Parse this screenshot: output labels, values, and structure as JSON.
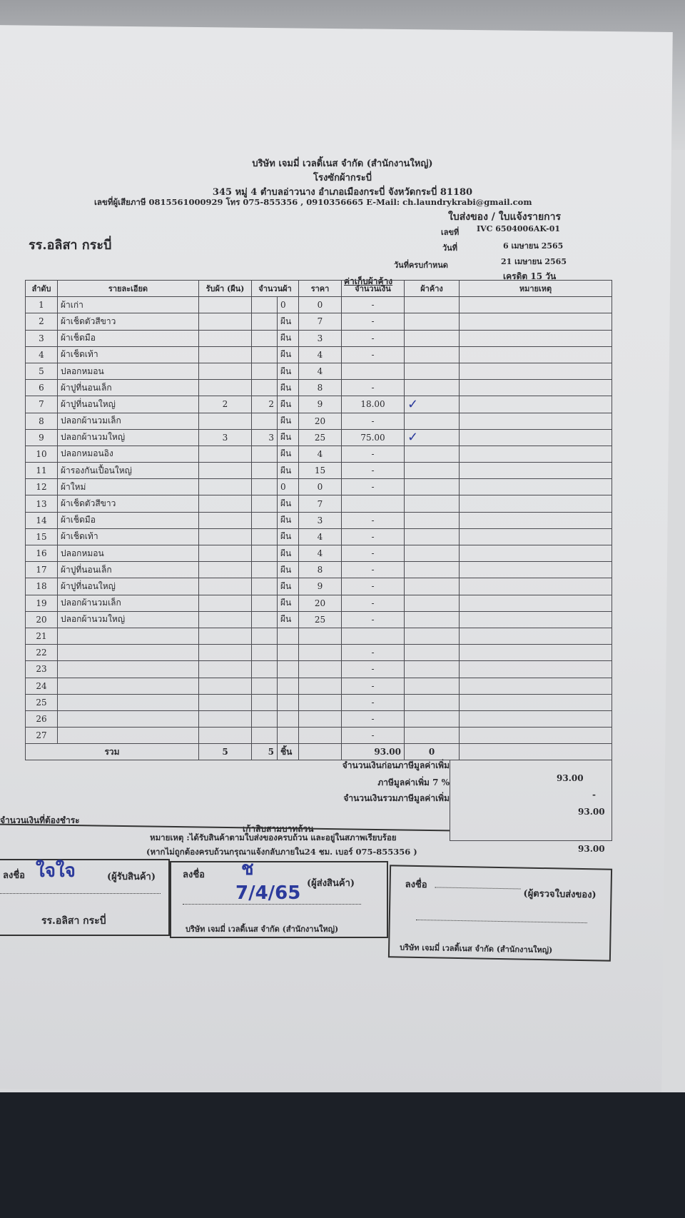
{
  "company": {
    "name": "บริษัท เจมมี่ เวลดิ้เนส จำกัด (สำนักงานใหญ่)",
    "branch": "โรงซักผ้ากระบี่",
    "address": "345 หมู่ 4 ตำบลอ่าวนาง อำเภอเมืองกระบี่ จังหวัดกระบี่ 81180",
    "contact": "เลขที่ผู้เสียภาษี 0815561000929 โทร 075-855356 , 0910356665 E-Mail: ch.laundrykrabi@gmail.com"
  },
  "doc": {
    "type": "ใบส่งของ / ใบแจ้งรายการ",
    "no_label": "เลขที่",
    "no": "IVC 6504006AK-01",
    "date_label": "วันที่",
    "date": "6 เมษายน 2565",
    "due_label": "วันที่ครบกำหนด",
    "due": "21 เมษายน 2565",
    "credit": "เครดิต 15 วัน",
    "customer": "รร.อลิสา กระบี่",
    "section": "ค่าเก็บผ้าค้าง"
  },
  "table": {
    "headers": [
      "ลำดับ",
      "รายละเอียด",
      "รับผ้า (ผืน)",
      "จำนวนผ้า",
      "ราคา",
      "จำนวนเงิน",
      "ผ้าค้าง",
      "หมายเหตุ"
    ],
    "rows": [
      {
        "no": "1",
        "item": "ผ้าเก่า",
        "recv": "",
        "qty": "",
        "unit": "0",
        "price": "0",
        "amount": "-",
        "mark": ""
      },
      {
        "no": "2",
        "item": "ผ้าเช็ดตัวสีขาว",
        "recv": "",
        "qty": "",
        "unit": "ผืน",
        "price": "7",
        "amount": "-",
        "mark": ""
      },
      {
        "no": "3",
        "item": "ผ้าเช็ดมือ",
        "recv": "",
        "qty": "",
        "unit": "ผืน",
        "price": "3",
        "amount": "-",
        "mark": ""
      },
      {
        "no": "4",
        "item": "ผ้าเช็ดเท้า",
        "recv": "",
        "qty": "",
        "unit": "ผืน",
        "price": "4",
        "amount": "-",
        "mark": ""
      },
      {
        "no": "5",
        "item": "ปลอกหมอน",
        "recv": "",
        "qty": "",
        "unit": "ผืน",
        "price": "4",
        "amount": "",
        "mark": ""
      },
      {
        "no": "6",
        "item": "ผ้าปูที่นอนเล็ก",
        "recv": "",
        "qty": "",
        "unit": "ผืน",
        "price": "8",
        "amount": "-",
        "mark": ""
      },
      {
        "no": "7",
        "item": "ผ้าปูที่นอนใหญ่",
        "recv": "2",
        "qty": "2",
        "unit": "ผืน",
        "price": "9",
        "amount": "18.00",
        "mark": "✓"
      },
      {
        "no": "8",
        "item": "ปลอกผ้านวมเล็ก",
        "recv": "",
        "qty": "",
        "unit": "ผืน",
        "price": "20",
        "amount": "-",
        "mark": ""
      },
      {
        "no": "9",
        "item": "ปลอกผ้านวมใหญ่",
        "recv": "3",
        "qty": "3",
        "unit": "ผืน",
        "price": "25",
        "amount": "75.00",
        "mark": "✓"
      },
      {
        "no": "10",
        "item": "ปลอกหมอนอิง",
        "recv": "",
        "qty": "",
        "unit": "ผืน",
        "price": "4",
        "amount": "-",
        "mark": ""
      },
      {
        "no": "11",
        "item": "ผ้ารองกันเปื้อนใหญ่",
        "recv": "",
        "qty": "",
        "unit": "ผืน",
        "price": "15",
        "amount": "-",
        "mark": ""
      },
      {
        "no": "12",
        "item": "ผ้าใหม่",
        "recv": "",
        "qty": "",
        "unit": "0",
        "price": "0",
        "amount": "-",
        "mark": ""
      },
      {
        "no": "13",
        "item": "ผ้าเช็ดตัวสีขาว",
        "recv": "",
        "qty": "",
        "unit": "ผืน",
        "price": "7",
        "amount": "",
        "mark": ""
      },
      {
        "no": "14",
        "item": "ผ้าเช็ดมือ",
        "recv": "",
        "qty": "",
        "unit": "ผืน",
        "price": "3",
        "amount": "-",
        "mark": ""
      },
      {
        "no": "15",
        "item": "ผ้าเช็ดเท้า",
        "recv": "",
        "qty": "",
        "unit": "ผืน",
        "price": "4",
        "amount": "-",
        "mark": ""
      },
      {
        "no": "16",
        "item": "ปลอกหมอน",
        "recv": "",
        "qty": "",
        "unit": "ผืน",
        "price": "4",
        "amount": "-",
        "mark": ""
      },
      {
        "no": "17",
        "item": "ผ้าปูที่นอนเล็ก",
        "recv": "",
        "qty": "",
        "unit": "ผืน",
        "price": "8",
        "amount": "-",
        "mark": ""
      },
      {
        "no": "18",
        "item": "ผ้าปูที่นอนใหญ่",
        "recv": "",
        "qty": "",
        "unit": "ผืน",
        "price": "9",
        "amount": "-",
        "mark": ""
      },
      {
        "no": "19",
        "item": "ปลอกผ้านวมเล็ก",
        "recv": "",
        "qty": "",
        "unit": "ผืน",
        "price": "20",
        "amount": "-",
        "mark": ""
      },
      {
        "no": "20",
        "item": "ปลอกผ้านวมใหญ่",
        "recv": "",
        "qty": "",
        "unit": "ผืน",
        "price": "25",
        "amount": "-",
        "mark": ""
      },
      {
        "no": "21",
        "item": "",
        "recv": "",
        "qty": "",
        "unit": "",
        "price": "",
        "amount": "",
        "mark": ""
      },
      {
        "no": "22",
        "item": "",
        "recv": "",
        "qty": "",
        "unit": "",
        "price": "",
        "amount": "-",
        "mark": ""
      },
      {
        "no": "23",
        "item": "",
        "recv": "",
        "qty": "",
        "unit": "",
        "price": "",
        "amount": "-",
        "mark": ""
      },
      {
        "no": "24",
        "item": "",
        "recv": "",
        "qty": "",
        "unit": "",
        "price": "",
        "amount": "-",
        "mark": ""
      },
      {
        "no": "25",
        "item": "",
        "recv": "",
        "qty": "",
        "unit": "",
        "price": "",
        "amount": "-",
        "mark": ""
      },
      {
        "no": "26",
        "item": "",
        "recv": "",
        "qty": "",
        "unit": "",
        "price": "",
        "amount": "-",
        "mark": ""
      },
      {
        "no": "27",
        "item": "",
        "recv": "",
        "qty": "",
        "unit": "",
        "price": "",
        "amount": "-",
        "mark": ""
      }
    ],
    "total": {
      "label": "รวม",
      "recv": "5",
      "qty": "5",
      "unit": "ชิ้น",
      "amount": "93.00",
      "pending": "0"
    }
  },
  "summary": {
    "before_vat_label": "จำนวนเงินก่อนภาษีมูลค่าเพิ่ม",
    "before_vat": "93.00",
    "vat_label": "ภาษีมูลค่าเพิ่ม 7 %",
    "vat": "-",
    "incl_vat_label": "จำนวนเงินรวมภาษีมูลค่าเพิ่ม",
    "incl_vat": "93.00",
    "payable_label": "จำนวนเงินที่ต้องชำระ",
    "payable": "93.00",
    "in_words": "เก้าสิบสามบาทถ้วน"
  },
  "note": {
    "line1": "หมายเหตุ :ได้รับสินค้าตามใบส่งของครบถ้วน และอยู่ในสภาพเรียบร้อย",
    "line2": "(หากไม่ถูกต้องครบถ้วนกรุณาแจ้งกลับภายใน24 ชม. เบอร์ 075-855356 )"
  },
  "signatures": [
    {
      "sign": "ลงชื่อ",
      "role": "(ผู้รับสินค้า)",
      "org": "รร.อลิสา กระบี่",
      "hand": "ใจใจ",
      "date": ""
    },
    {
      "sign": "ลงชื่อ",
      "role": "(ผู้ส่งสินค้า)",
      "org": "บริษัท เจมมี่ เวลดิ้เนส จำกัด (สำนักงานใหญ่)",
      "hand": "ช",
      "date": "7/4/65"
    },
    {
      "sign": "ลงชื่อ",
      "role": "(ผู้ตรวจใบส่งของ)",
      "org": "บริษัท เจมมี่ เวลดิ้เนส จำกัด (สำนักงานใหญ่)",
      "hand": "",
      "date": ""
    }
  ]
}
